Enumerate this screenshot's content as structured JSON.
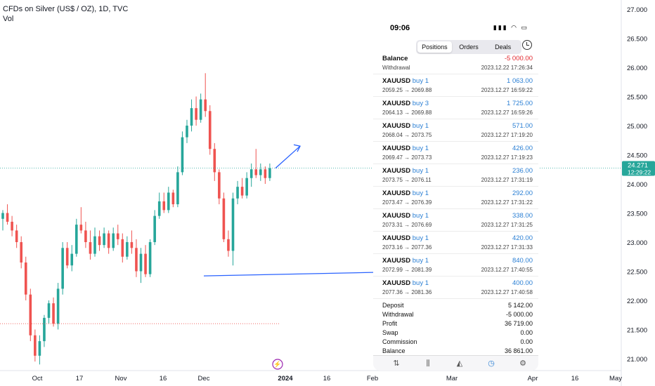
{
  "header": {
    "symbol_line": "CFDs on Silver (US$ / OZ), 1D, TVC",
    "indicator": "Vol"
  },
  "colors": {
    "up": "#26a69a",
    "down": "#ef5350",
    "accent": "#2962ff",
    "blue_text": "#2a7fd4",
    "red_text": "#e2262c"
  },
  "chart_data": {
    "type": "candlestick",
    "title": "CFDs on Silver (US$ / OZ), 1D, TVC",
    "ylim": [
      20.8,
      27.1
    ],
    "y_ticks": [
      "27.000",
      "26.500",
      "26.000",
      "25.500",
      "25.000",
      "24.500",
      "24.000",
      "23.500",
      "23.000",
      "22.500",
      "22.000",
      "21.500",
      "21.000"
    ],
    "x_ticks": [
      "Oct",
      "17",
      "Nov",
      "16",
      "Dec",
      "2024",
      "16",
      "Feb",
      "Mar",
      "Apr",
      "16",
      "May"
    ],
    "last_price": "24.271",
    "countdown": "12:29:22",
    "candles": [
      [
        23.4,
        23.55,
        23.2,
        23.5
      ],
      [
        23.5,
        23.65,
        23.3,
        23.35
      ],
      [
        23.35,
        23.45,
        23.1,
        23.2
      ],
      [
        23.2,
        23.3,
        22.9,
        23.0
      ],
      [
        23.0,
        23.1,
        22.55,
        22.65
      ],
      [
        22.65,
        22.75,
        22.0,
        22.1
      ],
      [
        22.1,
        22.2,
        21.3,
        21.4
      ],
      [
        21.4,
        21.5,
        20.95,
        21.05
      ],
      [
        21.05,
        21.4,
        20.9,
        21.3
      ],
      [
        21.3,
        21.75,
        21.2,
        21.7
      ],
      [
        21.7,
        22.0,
        21.6,
        21.95
      ],
      [
        21.95,
        22.05,
        21.55,
        21.6
      ],
      [
        21.6,
        22.3,
        21.5,
        22.2
      ],
      [
        22.2,
        23.0,
        22.1,
        22.9
      ],
      [
        22.9,
        23.0,
        22.55,
        22.6
      ],
      [
        22.6,
        22.95,
        22.5,
        22.8
      ],
      [
        22.8,
        23.4,
        22.75,
        23.3
      ],
      [
        23.3,
        23.6,
        23.15,
        23.2
      ],
      [
        23.2,
        23.35,
        22.9,
        23.0
      ],
      [
        23.0,
        23.2,
        22.7,
        22.8
      ],
      [
        22.8,
        23.25,
        22.75,
        23.1
      ],
      [
        23.1,
        23.2,
        22.85,
        22.95
      ],
      [
        22.95,
        23.25,
        22.9,
        23.15
      ],
      [
        23.15,
        23.2,
        22.8,
        22.9
      ],
      [
        22.9,
        23.25,
        22.85,
        23.15
      ],
      [
        23.15,
        23.3,
        22.95,
        23.05
      ],
      [
        23.05,
        23.15,
        22.65,
        22.75
      ],
      [
        22.75,
        23.1,
        22.7,
        23.0
      ],
      [
        23.0,
        23.2,
        22.8,
        22.9
      ],
      [
        22.9,
        23.05,
        22.4,
        22.5
      ],
      [
        22.5,
        22.9,
        22.3,
        22.8
      ],
      [
        22.8,
        22.95,
        22.4,
        22.45
      ],
      [
        22.45,
        23.05,
        22.4,
        23.0
      ],
      [
        23.0,
        23.55,
        22.95,
        23.45
      ],
      [
        23.45,
        23.85,
        23.4,
        23.7
      ],
      [
        23.7,
        23.85,
        23.5,
        23.55
      ],
      [
        23.55,
        23.95,
        23.5,
        23.85
      ],
      [
        23.85,
        23.9,
        23.6,
        23.65
      ],
      [
        23.65,
        24.3,
        23.6,
        24.2
      ],
      [
        24.2,
        24.9,
        24.15,
        24.8
      ],
      [
        24.8,
        25.1,
        24.7,
        25.0
      ],
      [
        25.0,
        25.45,
        24.9,
        25.3
      ],
      [
        25.3,
        25.5,
        25.0,
        25.1
      ],
      [
        25.1,
        25.55,
        25.05,
        25.45
      ],
      [
        25.45,
        25.9,
        25.15,
        25.25
      ],
      [
        25.25,
        25.35,
        24.5,
        24.6
      ],
      [
        24.6,
        24.7,
        24.05,
        24.2
      ],
      [
        24.2,
        24.25,
        23.65,
        23.75
      ],
      [
        23.75,
        23.85,
        23.0,
        23.05
      ],
      [
        23.05,
        23.2,
        22.75,
        22.85
      ],
      [
        22.85,
        23.85,
        22.6,
        23.75
      ],
      [
        23.75,
        24.05,
        23.65,
        23.95
      ],
      [
        23.95,
        24.1,
        23.75,
        23.8
      ],
      [
        23.8,
        24.2,
        23.75,
        24.1
      ],
      [
        24.1,
        24.35,
        23.95,
        24.25
      ],
      [
        24.25,
        24.6,
        24.1,
        24.15
      ],
      [
        24.15,
        24.35,
        24.05,
        24.25
      ],
      [
        24.25,
        24.3,
        24.0,
        24.1
      ],
      [
        24.1,
        24.35,
        24.05,
        24.27
      ]
    ],
    "annotations": {
      "horizontal_line": 22.42,
      "arrow_from": 24.27,
      "arrow_to": 24.6
    }
  },
  "phone": {
    "time": "09:06",
    "tabs": [
      "Positions",
      "Orders",
      "Deals"
    ],
    "active_tab": "Positions",
    "deals": [
      {
        "symbol": "Balance",
        "side": "",
        "detail": "Withdrawal",
        "amount": "-5 000.00",
        "time": "2023.12.22 17:26:34",
        "negative": true
      },
      {
        "symbol": "XAUUSD",
        "side": "buy 1",
        "detail": "2059.25 → 2069.88",
        "amount": "1 063.00",
        "time": "2023.12.27 16:59:22",
        "negative": false
      },
      {
        "symbol": "XAUUSD",
        "side": "buy 3",
        "detail": "2064.13 → 2069.88",
        "amount": "1 725.00",
        "time": "2023.12.27 16:59:26",
        "negative": false
      },
      {
        "symbol": "XAUUSD",
        "side": "buy 1",
        "detail": "2068.04 → 2073.75",
        "amount": "571.00",
        "time": "2023.12.27 17:19:20",
        "negative": false
      },
      {
        "symbol": "XAUUSD",
        "side": "buy 1",
        "detail": "2069.47 → 2073.73",
        "amount": "426.00",
        "time": "2023.12.27 17:19:23",
        "negative": false
      },
      {
        "symbol": "XAUUSD",
        "side": "buy 1",
        "detail": "2073.75 → 2076.11",
        "amount": "236.00",
        "time": "2023.12.27 17:31:19",
        "negative": false
      },
      {
        "symbol": "XAUUSD",
        "side": "buy 1",
        "detail": "2073.47 → 2076.39",
        "amount": "292.00",
        "time": "2023.12.27 17:31:22",
        "negative": false
      },
      {
        "symbol": "XAUUSD",
        "side": "buy 1",
        "detail": "2073.31 → 2076.69",
        "amount": "338.00",
        "time": "2023.12.27 17:31:25",
        "negative": false
      },
      {
        "symbol": "XAUUSD",
        "side": "buy 1",
        "detail": "2073.16 → 2077.36",
        "amount": "420.00",
        "time": "2023.12.27 17:31:33",
        "negative": false
      },
      {
        "symbol": "XAUUSD",
        "side": "buy 1",
        "detail": "2072.99 → 2081.39",
        "amount": "840.00",
        "time": "2023.12.27 17:40:55",
        "negative": false
      },
      {
        "symbol": "XAUUSD",
        "side": "buy 1",
        "detail": "2077.36 → 2081.36",
        "amount": "400.00",
        "time": "2023.12.27 17:40:58",
        "negative": false
      }
    ],
    "summary": [
      {
        "label": "Deposit",
        "value": "5 142.00"
      },
      {
        "label": "Withdrawal",
        "value": "-5 000.00"
      },
      {
        "label": "Profit",
        "value": "36 719.00"
      },
      {
        "label": "Swap",
        "value": "0.00"
      },
      {
        "label": "Commission",
        "value": "0.00"
      },
      {
        "label": "Balance",
        "value": "36 861.00"
      }
    ],
    "toolbar": [
      "sort-icon",
      "candles-icon",
      "chart-icon",
      "history-icon",
      "settings-icon"
    ]
  }
}
